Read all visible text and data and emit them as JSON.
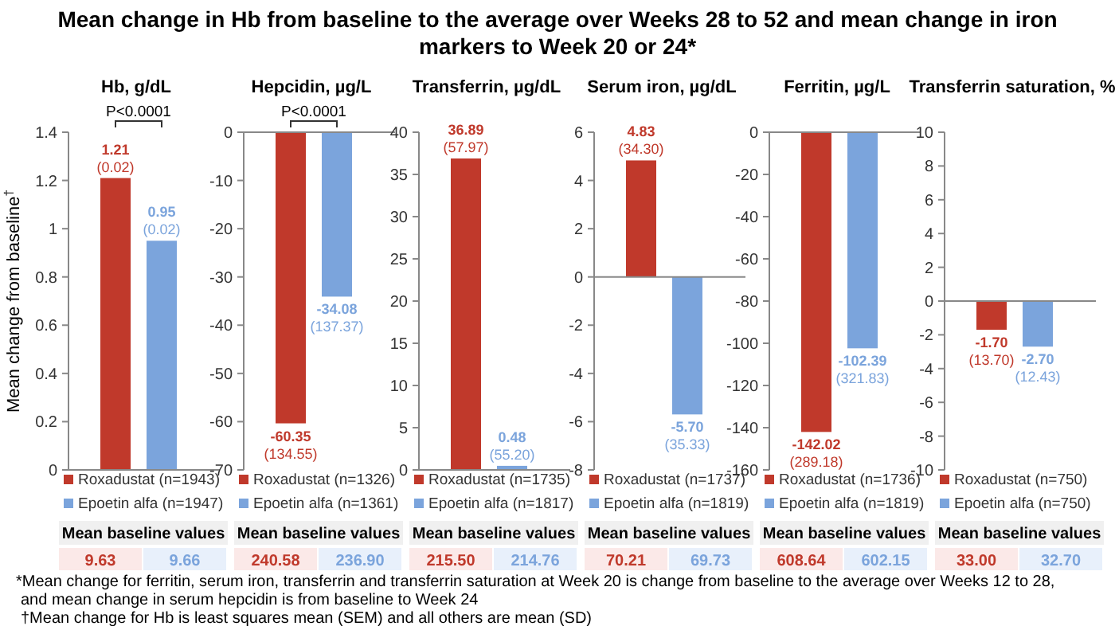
{
  "chart_data": [
    {
      "type": "bar",
      "title": "Hb, g/dL",
      "ylabel": "Mean change from baseline$^{†}$",
      "categories": [
        null
      ],
      "ylim": [
        0,
        1.4
      ],
      "yticks": [
        0,
        0.2,
        0.4,
        0.6,
        0.8,
        1,
        1.2,
        1.4
      ],
      "legend": "bottom",
      "series": [
        {
          "name": "Roxadustat (n=1943)",
          "color": "#c0392b",
          "values": [
            1.21
          ],
          "value_labels": [
            "1.21\n(0.02)"
          ]
        },
        {
          "name": "Epoetin alfa (n=1947)",
          "color": "#7ba4dc",
          "values": [
            0.95
          ],
          "value_labels": [
            "0.95\n(0.02)"
          ]
        }
      ],
      "annotations": [
        "P<0.0001",
        "Mean baseline values",
        "9.63",
        "9.66"
      ]
    },
    {
      "type": "bar",
      "title": "Hepcidin, µg/L",
      "categories": [
        null
      ],
      "ylim": [
        -70,
        0
      ],
      "yticks": [
        -70,
        -60,
        -50,
        -40,
        -30,
        -20,
        -10,
        0
      ],
      "legend": "bottom",
      "series": [
        {
          "name": "Roxadustat (n=1326)",
          "color": "#c0392b",
          "values": [
            -60.35
          ],
          "value_labels": [
            "-60.35\n(134.55)"
          ]
        },
        {
          "name": "Epoetin alfa (n=1361)",
          "color": "#7ba4dc",
          "values": [
            -34.08
          ],
          "value_labels": [
            "-34.08\n(137.37)"
          ]
        }
      ],
      "annotations": [
        "P<0.0001",
        "Mean baseline values",
        "240.58",
        "236.90"
      ]
    },
    {
      "type": "bar",
      "title": "Transferrin, µg/dL",
      "categories": [
        null
      ],
      "ylim": [
        0,
        40
      ],
      "yticks": [
        0,
        5,
        10,
        15,
        20,
        25,
        30,
        35,
        40
      ],
      "legend": "bottom",
      "series": [
        {
          "name": "Roxadustat (n=1735)",
          "color": "#c0392b",
          "values": [
            36.89
          ],
          "value_labels": [
            "36.89\n(57.97)"
          ]
        },
        {
          "name": "Epoetin alfa (n=1817)",
          "color": "#7ba4dc",
          "values": [
            0.48
          ],
          "value_labels": [
            "0.48\n(55.20)"
          ]
        }
      ],
      "annotations": [
        "Mean baseline values",
        "215.50",
        "214.76"
      ]
    },
    {
      "type": "bar",
      "title": "Serum iron, µg/dL",
      "categories": [
        null
      ],
      "ylim": [
        -8,
        6
      ],
      "yticks": [
        -8,
        -6,
        -4,
        -2,
        0,
        2,
        4,
        6
      ],
      "legend": "bottom",
      "series": [
        {
          "name": "Roxadustat (n=1737)",
          "color": "#c0392b",
          "values": [
            4.83
          ],
          "value_labels": [
            "4.83\n(34.30)"
          ]
        },
        {
          "name": "Epoetin alfa (n=1819)",
          "color": "#7ba4dc",
          "values": [
            -5.7
          ],
          "value_labels": [
            "-5.70\n(35.33)"
          ]
        }
      ],
      "annotations": [
        "Mean baseline values",
        "70.21",
        "69.73"
      ]
    },
    {
      "type": "bar",
      "title": "Ferritin, µg/L",
      "categories": [
        null
      ],
      "ylim": [
        -160,
        0
      ],
      "yticks": [
        -160,
        -140,
        -120,
        -100,
        -80,
        -60,
        -40,
        -20,
        0
      ],
      "legend": "bottom",
      "series": [
        {
          "name": "Roxadustat (n=1736)",
          "color": "#c0392b",
          "values": [
            -142.02
          ],
          "value_labels": [
            "-142.02\n(289.18)"
          ]
        },
        {
          "name": "Epoetin alfa (n=1819)",
          "color": "#7ba4dc",
          "values": [
            -102.39
          ],
          "value_labels": [
            "-102.39\n(321.83)"
          ]
        }
      ],
      "annotations": [
        "Mean baseline values",
        "608.64",
        "602.15"
      ]
    },
    {
      "type": "bar",
      "title": "Transferrin saturation, %",
      "categories": [
        null
      ],
      "ylim": [
        -10,
        10
      ],
      "yticks": [
        -10,
        -8,
        -6,
        -4,
        -2,
        0,
        2,
        4,
        6,
        8,
        10
      ],
      "legend": "bottom",
      "series": [
        {
          "name": "Roxadustat (n=750)",
          "color": "#c0392b",
          "values": [
            -1.7
          ],
          "value_labels": [
            "-1.70\n(13.70)"
          ]
        },
        {
          "name": "Epoetin alfa (n=750)",
          "color": "#7ba4dc",
          "values": [
            -2.7
          ],
          "value_labels": [
            "-2.70\n(12.43)"
          ]
        }
      ],
      "annotations": [
        "Mean baseline values",
        "33.00",
        "32.70"
      ]
    },
    {
      "type": "other",
      "title": "Mean change in Hb from baseline to the average over Weeks 28 to 52 and mean change in iron markers to Week 20 or 24*",
      "annotations": [
        "*Mean change for ferritin, serum iron, transferrin and transferrin saturation at Week 20 is change from baseline to the average over Weeks 12 to 28,",
        "and mean change in serum hepcidin is from baseline to Week 24",
        "†Mean change for Hb is least squares mean (SEM) and all others are mean (SD)"
      ]
    }
  ]
}
